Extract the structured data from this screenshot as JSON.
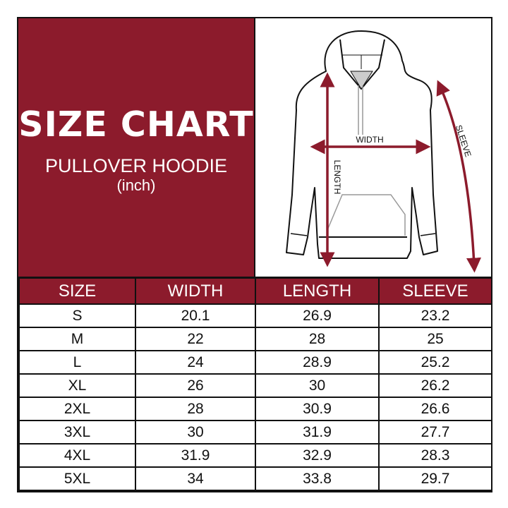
{
  "header": {
    "title": "SIZE CHART",
    "subtitle": "PULLOVER HOODIE",
    "unit": "(inch)"
  },
  "diagram": {
    "width_label": "WIDTH",
    "length_label": "LENGTH",
    "sleeve_label": "SLEEVE",
    "arrow_color": "#8c1b2c"
  },
  "table": {
    "columns": [
      "SIZE",
      "WIDTH",
      "LENGTH",
      "SLEEVE"
    ],
    "rows": [
      [
        "S",
        "20.1",
        "26.9",
        "23.2"
      ],
      [
        "M",
        "22",
        "28",
        "25"
      ],
      [
        "L",
        "24",
        "28.9",
        "25.2"
      ],
      [
        "XL",
        "26",
        "30",
        "26.2"
      ],
      [
        "2XL",
        "28",
        "30.9",
        "26.6"
      ],
      [
        "3XL",
        "30",
        "31.9",
        "27.7"
      ],
      [
        "4XL",
        "31.9",
        "32.9",
        "28.3"
      ],
      [
        "5XL",
        "34",
        "33.8",
        "29.7"
      ]
    ]
  },
  "colors": {
    "brand": "#8c1b2c"
  }
}
